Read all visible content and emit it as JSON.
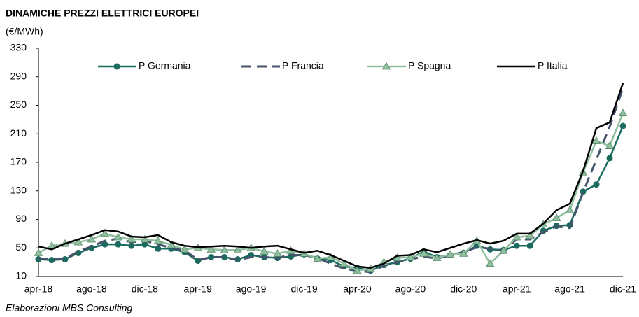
{
  "chart_data": {
    "type": "line",
    "title": "DINAMICHE PREZZI ELETTRICI EUROPEI",
    "y_label": "(€/MWh)",
    "source": "Elaborazioni MBS Consulting",
    "categories": [
      "apr-18",
      null,
      null,
      null,
      "ago-18",
      null,
      null,
      null,
      "dic-18",
      null,
      null,
      null,
      "apr-19",
      null,
      null,
      null,
      "ago-19",
      null,
      null,
      null,
      "dic-19",
      null,
      null,
      null,
      "apr-20",
      null,
      null,
      null,
      "ago-20",
      null,
      null,
      null,
      "dic-20",
      null,
      null,
      null,
      "apr-21",
      null,
      null,
      null,
      "ago-21",
      null,
      null,
      null,
      "dic-21"
    ],
    "series": [
      {
        "name": "P Germania",
        "color": "#1a6b5e",
        "marker": "circle",
        "dash": false,
        "values": [
          34,
          33,
          34,
          43,
          50,
          55,
          55,
          53,
          55,
          49,
          49,
          44,
          32,
          37,
          37,
          34,
          40,
          37,
          36,
          38,
          41,
          35,
          33,
          24,
          22,
          18,
          26,
          30,
          35,
          45,
          37,
          40,
          43,
          53,
          48,
          47,
          53,
          53,
          74,
          81,
          82,
          129,
          139,
          176,
          221
        ]
      },
      {
        "name": "P Francia",
        "color": "#44546a",
        "marker": null,
        "dash": true,
        "values": [
          35,
          34,
          35,
          45,
          52,
          60,
          63,
          58,
          60,
          55,
          50,
          47,
          33,
          37,
          37,
          33,
          37,
          37,
          36,
          40,
          40,
          36,
          28,
          21,
          18,
          16,
          25,
          30,
          34,
          38,
          35,
          40,
          44,
          51,
          49,
          46,
          62,
          62,
          72,
          80,
          78,
          128,
          174,
          220,
          274
        ]
      },
      {
        "name": "P Spagna",
        "color": "#8fbf9f",
        "marker": "triangle",
        "dash": false,
        "values": [
          43,
          53,
          56,
          58,
          62,
          70,
          65,
          62,
          62,
          60,
          54,
          48,
          50,
          48,
          47,
          47,
          50,
          45,
          42,
          46,
          42,
          35,
          37,
          28,
          18,
          21,
          30,
          36,
          37,
          42,
          36,
          41,
          42,
          60,
          28,
          46,
          65,
          67,
          83,
          92,
          103,
          156,
          200,
          193,
          239
        ]
      },
      {
        "name": "P Italia",
        "color": "#000000",
        "marker": null,
        "dash": false,
        "values": [
          52,
          48,
          56,
          62,
          68,
          75,
          73,
          66,
          65,
          68,
          58,
          53,
          51,
          52,
          53,
          52,
          50,
          52,
          53,
          48,
          43,
          46,
          40,
          32,
          24,
          22,
          28,
          39,
          40,
          48,
          44,
          50,
          56,
          61,
          56,
          60,
          70,
          70,
          84,
          103,
          112,
          158,
          218,
          226,
          281
        ]
      }
    ],
    "ylim": [
      10,
      330
    ],
    "yticks": [
      10,
      50,
      90,
      130,
      170,
      210,
      250,
      290,
      330
    ],
    "grid": false,
    "legend": "top"
  }
}
